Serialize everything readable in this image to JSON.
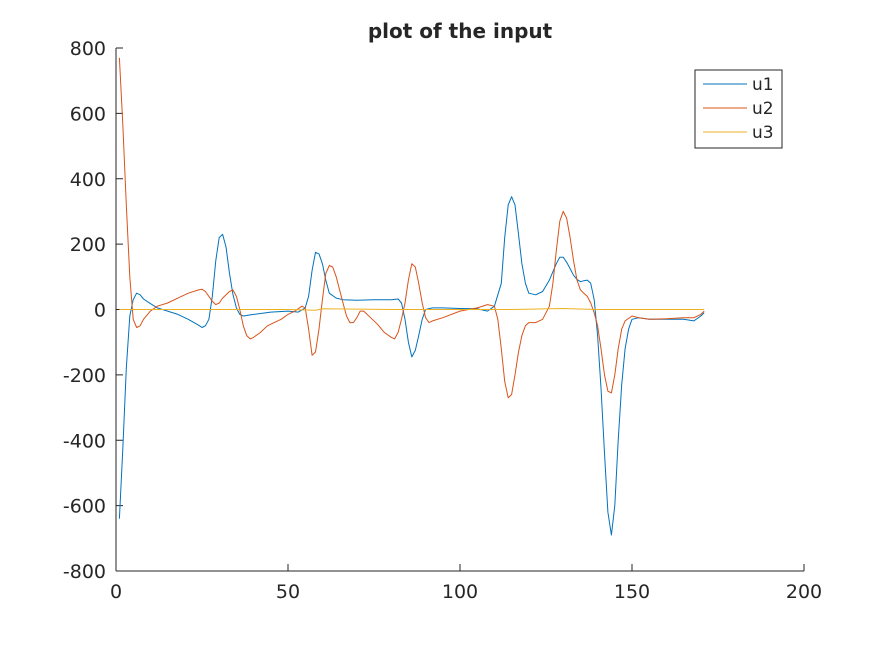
{
  "chart_data": {
    "type": "line",
    "title": "plot of the input",
    "xlabel": "",
    "ylabel": "",
    "xlim": [
      0,
      200
    ],
    "ylim": [
      -800,
      800
    ],
    "xticks": [
      0,
      50,
      100,
      150,
      200
    ],
    "yticks": [
      -800,
      -600,
      -400,
      -200,
      0,
      200,
      400,
      600,
      800
    ],
    "grid": false,
    "legend_position": "top-right",
    "series": [
      {
        "name": "u1",
        "color": "#0072BD",
        "points": [
          [
            1,
            -640
          ],
          [
            2,
            -420
          ],
          [
            3,
            -180
          ],
          [
            4,
            -20
          ],
          [
            5,
            30
          ],
          [
            6,
            50
          ],
          [
            7,
            45
          ],
          [
            8,
            32
          ],
          [
            10,
            18
          ],
          [
            12,
            5
          ],
          [
            15,
            -5
          ],
          [
            18,
            -15
          ],
          [
            21,
            -30
          ],
          [
            24,
            -48
          ],
          [
            25,
            -55
          ],
          [
            26,
            -50
          ],
          [
            27,
            -30
          ],
          [
            28,
            40
          ],
          [
            29,
            150
          ],
          [
            30,
            220
          ],
          [
            31,
            230
          ],
          [
            32,
            190
          ],
          [
            33,
            110
          ],
          [
            34,
            45
          ],
          [
            35,
            5
          ],
          [
            36,
            -15
          ],
          [
            37,
            -20
          ],
          [
            40,
            -15
          ],
          [
            45,
            -8
          ],
          [
            50,
            -5
          ],
          [
            53,
            -8
          ],
          [
            55,
            5
          ],
          [
            56,
            40
          ],
          [
            57,
            120
          ],
          [
            58,
            175
          ],
          [
            59,
            170
          ],
          [
            60,
            140
          ],
          [
            61,
            90
          ],
          [
            62,
            50
          ],
          [
            64,
            35
          ],
          [
            66,
            30
          ],
          [
            70,
            28
          ],
          [
            75,
            30
          ],
          [
            80,
            30
          ],
          [
            82,
            32
          ],
          [
            83,
            20
          ],
          [
            84,
            -30
          ],
          [
            85,
            -100
          ],
          [
            86,
            -145
          ],
          [
            87,
            -125
          ],
          [
            88,
            -80
          ],
          [
            89,
            -30
          ],
          [
            90,
            0
          ],
          [
            92,
            5
          ],
          [
            95,
            5
          ],
          [
            100,
            3
          ],
          [
            105,
            2
          ],
          [
            108,
            -5
          ],
          [
            110,
            10
          ],
          [
            112,
            80
          ],
          [
            113,
            220
          ],
          [
            114,
            320
          ],
          [
            115,
            345
          ],
          [
            116,
            320
          ],
          [
            117,
            230
          ],
          [
            118,
            140
          ],
          [
            119,
            80
          ],
          [
            120,
            50
          ],
          [
            122,
            45
          ],
          [
            124,
            55
          ],
          [
            126,
            90
          ],
          [
            128,
            140
          ],
          [
            129,
            160
          ],
          [
            130,
            160
          ],
          [
            131,
            145
          ],
          [
            132,
            125
          ],
          [
            133,
            105
          ],
          [
            134,
            92
          ],
          [
            135,
            85
          ],
          [
            136,
            88
          ],
          [
            137,
            90
          ],
          [
            138,
            80
          ],
          [
            139,
            30
          ],
          [
            140,
            -80
          ],
          [
            141,
            -240
          ],
          [
            142,
            -440
          ],
          [
            143,
            -620
          ],
          [
            144,
            -690
          ],
          [
            145,
            -600
          ],
          [
            146,
            -400
          ],
          [
            147,
            -230
          ],
          [
            148,
            -120
          ],
          [
            149,
            -60
          ],
          [
            150,
            -30
          ],
          [
            152,
            -25
          ],
          [
            155,
            -30
          ],
          [
            160,
            -30
          ],
          [
            165,
            -30
          ],
          [
            168,
            -35
          ],
          [
            170,
            -20
          ],
          [
            171,
            -10
          ]
        ]
      },
      {
        "name": "u2",
        "color": "#D95319",
        "points": [
          [
            1,
            770
          ],
          [
            2,
            560
          ],
          [
            3,
            320
          ],
          [
            4,
            100
          ],
          [
            5,
            -30
          ],
          [
            6,
            -55
          ],
          [
            7,
            -50
          ],
          [
            8,
            -30
          ],
          [
            10,
            -5
          ],
          [
            12,
            10
          ],
          [
            15,
            20
          ],
          [
            18,
            35
          ],
          [
            21,
            50
          ],
          [
            24,
            60
          ],
          [
            25,
            62
          ],
          [
            26,
            55
          ],
          [
            27,
            40
          ],
          [
            28,
            25
          ],
          [
            29,
            15
          ],
          [
            30,
            20
          ],
          [
            31,
            35
          ],
          [
            32,
            45
          ],
          [
            33,
            55
          ],
          [
            34,
            60
          ],
          [
            35,
            40
          ],
          [
            36,
            0
          ],
          [
            37,
            -50
          ],
          [
            38,
            -80
          ],
          [
            39,
            -90
          ],
          [
            40,
            -85
          ],
          [
            42,
            -70
          ],
          [
            44,
            -50
          ],
          [
            46,
            -40
          ],
          [
            48,
            -30
          ],
          [
            50,
            -15
          ],
          [
            52,
            -5
          ],
          [
            54,
            10
          ],
          [
            55,
            5
          ],
          [
            56,
            -60
          ],
          [
            57,
            -140
          ],
          [
            58,
            -130
          ],
          [
            59,
            -60
          ],
          [
            60,
            30
          ],
          [
            61,
            110
          ],
          [
            62,
            135
          ],
          [
            63,
            130
          ],
          [
            64,
            100
          ],
          [
            65,
            60
          ],
          [
            66,
            20
          ],
          [
            67,
            -20
          ],
          [
            68,
            -40
          ],
          [
            69,
            -40
          ],
          [
            70,
            -25
          ],
          [
            71,
            -5
          ],
          [
            72,
            -5
          ],
          [
            74,
            -25
          ],
          [
            76,
            -45
          ],
          [
            78,
            -70
          ],
          [
            80,
            -85
          ],
          [
            81,
            -90
          ],
          [
            82,
            -70
          ],
          [
            83,
            -30
          ],
          [
            84,
            20
          ],
          [
            85,
            90
          ],
          [
            86,
            140
          ],
          [
            87,
            130
          ],
          [
            88,
            80
          ],
          [
            89,
            20
          ],
          [
            90,
            -25
          ],
          [
            91,
            -40
          ],
          [
            92,
            -35
          ],
          [
            95,
            -25
          ],
          [
            100,
            -5
          ],
          [
            105,
            5
          ],
          [
            108,
            15
          ],
          [
            110,
            10
          ],
          [
            111,
            -30
          ],
          [
            112,
            -120
          ],
          [
            113,
            -220
          ],
          [
            114,
            -270
          ],
          [
            115,
            -260
          ],
          [
            116,
            -200
          ],
          [
            117,
            -130
          ],
          [
            118,
            -80
          ],
          [
            119,
            -50
          ],
          [
            120,
            -40
          ],
          [
            122,
            -40
          ],
          [
            124,
            -30
          ],
          [
            126,
            10
          ],
          [
            127,
            80
          ],
          [
            128,
            180
          ],
          [
            129,
            270
          ],
          [
            130,
            300
          ],
          [
            131,
            280
          ],
          [
            132,
            220
          ],
          [
            133,
            150
          ],
          [
            134,
            90
          ],
          [
            135,
            60
          ],
          [
            136,
            50
          ],
          [
            137,
            40
          ],
          [
            138,
            20
          ],
          [
            139,
            -10
          ],
          [
            140,
            -50
          ],
          [
            141,
            -120
          ],
          [
            142,
            -200
          ],
          [
            143,
            -250
          ],
          [
            144,
            -255
          ],
          [
            145,
            -200
          ],
          [
            146,
            -120
          ],
          [
            147,
            -60
          ],
          [
            148,
            -35
          ],
          [
            150,
            -20
          ],
          [
            152,
            -25
          ],
          [
            155,
            -30
          ],
          [
            160,
            -28
          ],
          [
            165,
            -25
          ],
          [
            168,
            -25
          ],
          [
            170,
            -15
          ],
          [
            171,
            -5
          ]
        ]
      },
      {
        "name": "u3",
        "color": "#EDB120",
        "points": [
          [
            1,
            0
          ],
          [
            10,
            0
          ],
          [
            30,
            0
          ],
          [
            50,
            0
          ],
          [
            58,
            -2
          ],
          [
            60,
            2
          ],
          [
            80,
            0
          ],
          [
            100,
            0
          ],
          [
            115,
            0
          ],
          [
            130,
            3
          ],
          [
            140,
            0
          ],
          [
            150,
            0
          ],
          [
            160,
            0
          ],
          [
            171,
            0
          ]
        ]
      }
    ]
  }
}
